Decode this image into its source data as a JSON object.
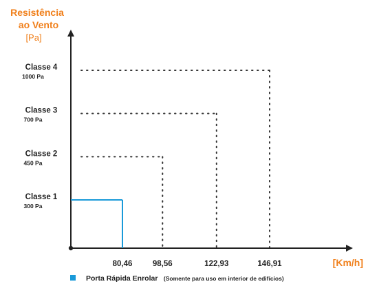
{
  "chart_data": {
    "type": "step",
    "title": "",
    "ylabel": [
      "Resistência",
      "ao Vento",
      "[Pa]"
    ],
    "xlabel": "[Km/h]",
    "categories": [
      {
        "name": "Classe 1",
        "pressure_label": "300 Pa",
        "pressure": 300,
        "speed": 80.46,
        "speed_label": "80,46",
        "style": "solid"
      },
      {
        "name": "Classe 2",
        "pressure_label": "450 Pa",
        "pressure": 450,
        "speed": 98.56,
        "speed_label": "98,56",
        "style": "dotted"
      },
      {
        "name": "Classe 3",
        "pressure_label": "700 Pa",
        "pressure": 700,
        "speed": 122.93,
        "speed_label": "122,93",
        "style": "dotted"
      },
      {
        "name": "Classe 4",
        "pressure_label": "1000 Pa",
        "pressure": 1000,
        "speed": 146.91,
        "speed_label": "146,91",
        "style": "dotted"
      }
    ],
    "legend": {
      "label": "Porta Rápida Enrolar",
      "note": "(Somente para uso em interior de edifícios)",
      "color": "#1a9ad9"
    }
  },
  "colors": {
    "accent": "#f07f1a",
    "series": "#1a9ad9",
    "axis": "#222222"
  }
}
